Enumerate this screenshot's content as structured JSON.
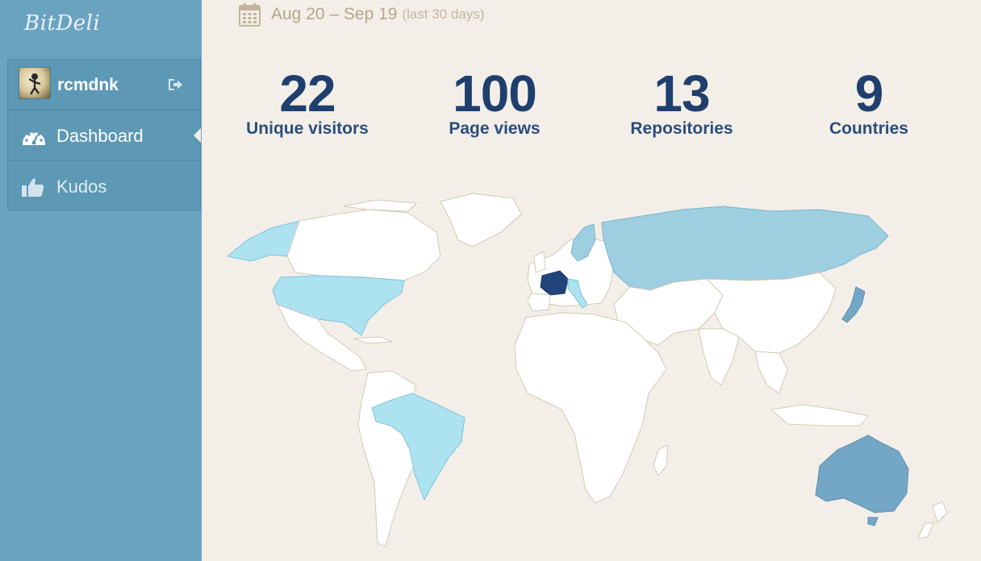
{
  "brand": {
    "name": "BitDeli"
  },
  "sidebar": {
    "user": {
      "name": "rcmdnk"
    },
    "items": [
      {
        "label": "Dashboard",
        "icon": "dashboard-icon",
        "active": true
      },
      {
        "label": "Kudos",
        "icon": "thumbs-up-icon",
        "active": false
      }
    ]
  },
  "date_range": {
    "label": "Aug 20 – Sep 19",
    "note": "(last 30 days)"
  },
  "stats": [
    {
      "value": "22",
      "label": "Unique visitors"
    },
    {
      "value": "100",
      "label": "Page views"
    },
    {
      "value": "13",
      "label": "Repositories"
    },
    {
      "value": "9",
      "label": "Countries"
    }
  ],
  "map": {
    "highlighted_countries": [
      "France",
      "Australia",
      "Russia",
      "Japan",
      "United States",
      "Brazil",
      "Sweden",
      "Italy",
      "Alaska (US)"
    ],
    "colors": {
      "land": "#ffffff",
      "light": "#ade2f1",
      "medium": "#9ecfe1",
      "strong": "#74a7c6",
      "max": "#21457a",
      "background": "#f3efe8"
    }
  },
  "colors": {
    "sidebar": "#6aa3bf",
    "accent": "#1f3f6e",
    "date_text": "#b5a58a"
  }
}
